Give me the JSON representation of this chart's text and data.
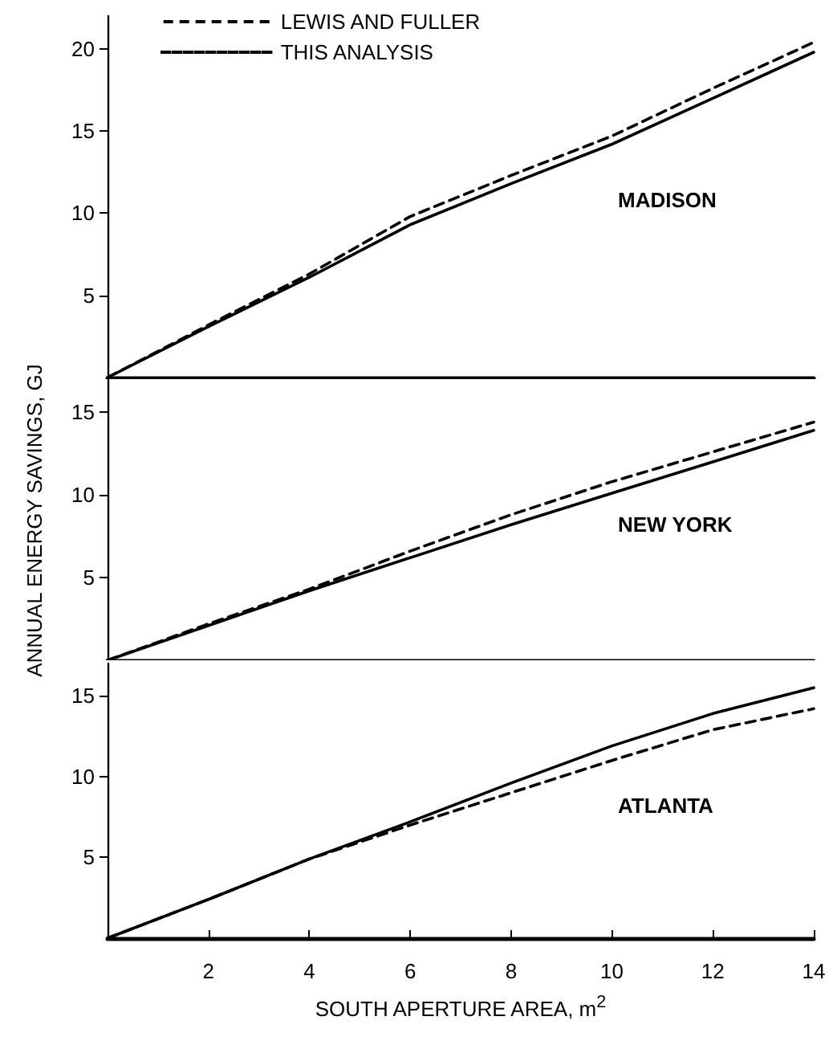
{
  "chart_data": [
    {
      "type": "line",
      "legend": "top left",
      "marker": "none",
      "tick_labels": "y",
      "annotations": [
        "MADISON"
      ],
      "xlim": [
        0,
        14
      ],
      "ylim": [
        0,
        22
      ],
      "yticks": [
        5,
        10,
        15,
        20
      ],
      "x": [
        0,
        2,
        4,
        6,
        8,
        10,
        12,
        14
      ],
      "series": [
        {
          "name": "LEWIS AND FULLER",
          "color": "#000000",
          "line_style": "dashed",
          "values": [
            0,
            3.2,
            6.3,
            9.8,
            12.3,
            14.7,
            17.6,
            20.4
          ]
        },
        {
          "name": "THIS ANALYSIS",
          "color": "#000000",
          "line_style": "solid",
          "values": [
            0,
            3.1,
            6.1,
            9.3,
            11.8,
            14.2,
            17.0,
            19.8
          ]
        }
      ]
    },
    {
      "type": "line",
      "marker": "none",
      "tick_labels": "y",
      "ylabel": "ANNUAL ENERGY SAVINGS, GJ",
      "annotations": [
        "NEW YORK"
      ],
      "xlim": [
        0,
        14
      ],
      "ylim": [
        0,
        17
      ],
      "yticks": [
        5,
        10,
        15
      ],
      "x": [
        0,
        2,
        4,
        6,
        8,
        10,
        12,
        14
      ],
      "series": [
        {
          "color": "#000000",
          "line_style": "dashed",
          "values": [
            0,
            2.2,
            4.3,
            6.6,
            8.8,
            10.8,
            12.6,
            14.4
          ]
        },
        {
          "color": "#000000",
          "line_style": "solid",
          "values": [
            0,
            2.1,
            4.2,
            6.2,
            8.2,
            10.1,
            12.0,
            13.9
          ]
        }
      ]
    },
    {
      "type": "line",
      "marker": "none",
      "xlabel": "SOUTH APERTURE AREA, m$^{2}$",
      "annotations": [
        "ATLANTA"
      ],
      "xlim": [
        0,
        14
      ],
      "ylim": [
        0,
        17
      ],
      "xticks": [
        {
          "value": 0,
          "label": null
        },
        2,
        4,
        6,
        8,
        10,
        12,
        14
      ],
      "yticks": [
        5,
        10,
        15
      ],
      "x": [
        0,
        2,
        4,
        6,
        8,
        10,
        12,
        14
      ],
      "series": [
        {
          "color": "#000000",
          "line_style": "dashed",
          "values": [
            0,
            2.4,
            4.9,
            7.0,
            9.0,
            11.0,
            12.9,
            14.2
          ]
        },
        {
          "color": "#000000",
          "line_style": "solid",
          "values": [
            0,
            2.4,
            4.9,
            7.2,
            9.6,
            11.9,
            13.9,
            15.5
          ]
        }
      ]
    }
  ]
}
